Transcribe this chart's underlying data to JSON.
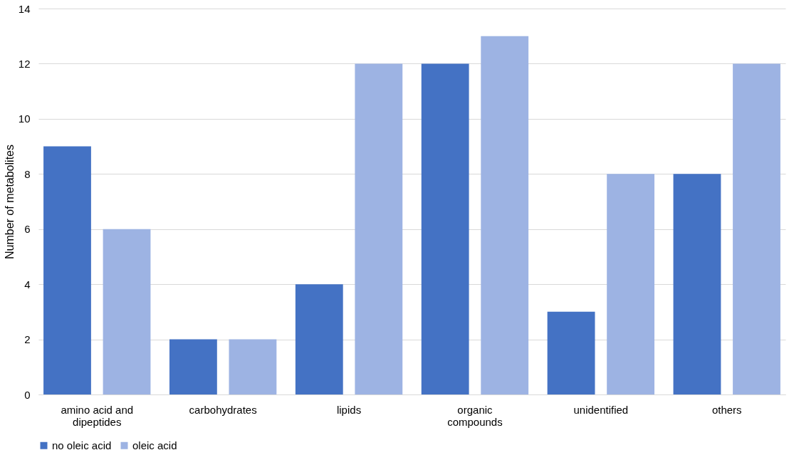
{
  "chart_data": {
    "type": "bar",
    "ylabel": "Number of metabolites",
    "categories": [
      "amino acid and dipeptides",
      "carbohydrates",
      "lipids",
      "organic compounds",
      "unidentified",
      "others"
    ],
    "series": [
      {
        "name": "no oleic acid",
        "color": "#4472c4",
        "values": [
          9,
          2,
          4,
          12,
          3,
          8
        ]
      },
      {
        "name": "oleic acid",
        "color": "#9db3e3",
        "values": [
          6,
          2,
          12,
          13,
          8,
          12
        ]
      }
    ],
    "ylim": [
      0,
      14
    ],
    "yticks": [
      0,
      2,
      4,
      6,
      8,
      10,
      12,
      14
    ],
    "grid": "y",
    "legend": "bottom"
  }
}
